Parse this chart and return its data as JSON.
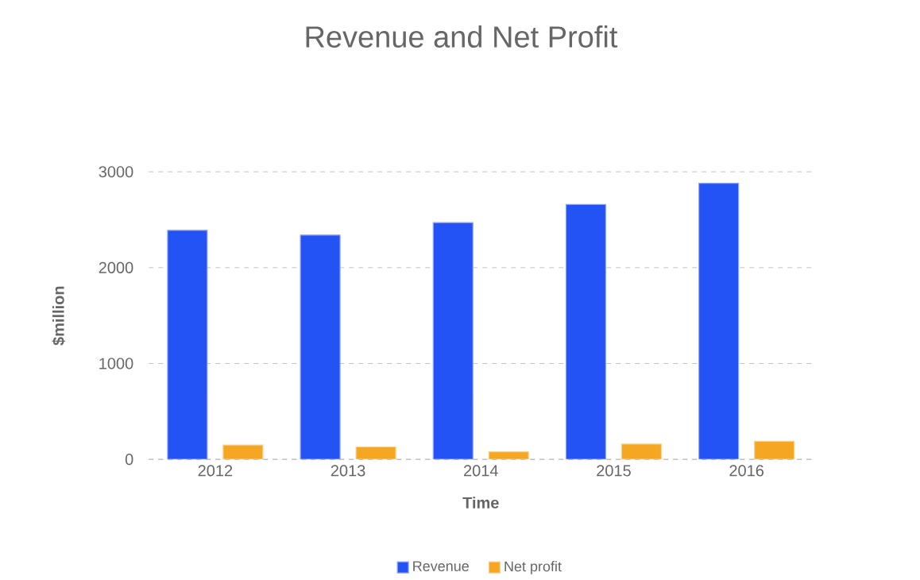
{
  "chart_data": {
    "type": "bar",
    "title": "Revenue and Net Profit",
    "xlabel": "Time",
    "ylabel": "$million",
    "categories": [
      "2012",
      "2013",
      "2014",
      "2015",
      "2016"
    ],
    "series": [
      {
        "name": "Revenue",
        "color": "#2352f5",
        "values": [
          2390,
          2340,
          2470,
          2660,
          2880
        ]
      },
      {
        "name": "Net profit",
        "color": "#f5a623",
        "values": [
          150,
          130,
          80,
          160,
          190
        ]
      }
    ],
    "ylim": [
      0,
      3000
    ],
    "yticks": [
      0,
      1000,
      2000,
      3000
    ],
    "grid": "y",
    "legend": "bottom"
  }
}
